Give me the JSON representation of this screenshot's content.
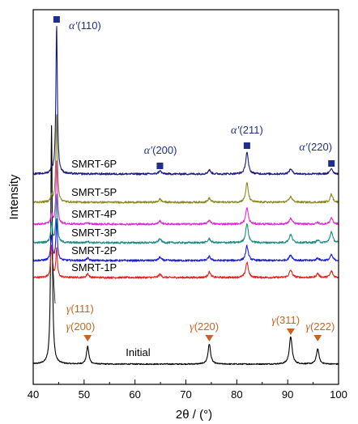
{
  "chart_data": {
    "type": "line",
    "xlabel": "2θ / (°)",
    "ylabel": "Intensity",
    "xlim": [
      40,
      100
    ],
    "xticks": [
      40,
      50,
      60,
      70,
      80,
      90,
      100
    ],
    "y_ticks_shown": false,
    "grid": false,
    "series": [
      {
        "name": "Initial",
        "color": "#000000",
        "peaks": [
          {
            "x": 43.6,
            "height": 295,
            "width": 0.35
          },
          {
            "x": 50.7,
            "height": 22,
            "width": 0.55
          },
          {
            "x": 74.6,
            "height": 25,
            "width": 0.6
          },
          {
            "x": 90.6,
            "height": 34,
            "width": 0.65
          },
          {
            "x": 95.9,
            "height": 19,
            "width": 0.6
          }
        ]
      },
      {
        "name": "SMRT-1P",
        "color": "#e8221b",
        "peaks": [
          {
            "x": 43.6,
            "height": 40,
            "width": 0.4
          },
          {
            "x": 44.6,
            "height": 35,
            "width": 0.35
          },
          {
            "x": 50.7,
            "height": 5,
            "width": 0.5
          },
          {
            "x": 64.9,
            "height": 4,
            "width": 0.6
          },
          {
            "x": 74.6,
            "height": 7,
            "width": 0.6
          },
          {
            "x": 82.0,
            "height": 19,
            "width": 0.6
          },
          {
            "x": 90.6,
            "height": 9,
            "width": 0.7
          },
          {
            "x": 95.9,
            "height": 5,
            "width": 0.6
          },
          {
            "x": 98.6,
            "height": 8,
            "width": 0.6
          }
        ]
      },
      {
        "name": "SMRT-2P",
        "color": "#1c1cde",
        "peaks": [
          {
            "x": 43.6,
            "height": 30,
            "width": 0.4
          },
          {
            "x": 44.6,
            "height": 50,
            "width": 0.35
          },
          {
            "x": 50.7,
            "height": 3,
            "width": 0.5
          },
          {
            "x": 64.9,
            "height": 4,
            "width": 0.6
          },
          {
            "x": 74.6,
            "height": 5,
            "width": 0.6
          },
          {
            "x": 82.0,
            "height": 18,
            "width": 0.6
          },
          {
            "x": 90.6,
            "height": 7,
            "width": 0.7
          },
          {
            "x": 95.9,
            "height": 3,
            "width": 0.6
          },
          {
            "x": 98.6,
            "height": 7,
            "width": 0.6
          }
        ]
      },
      {
        "name": "SMRT-3P",
        "color": "#1a8c86",
        "peaks": [
          {
            "x": 43.6,
            "height": 25,
            "width": 0.4
          },
          {
            "x": 44.6,
            "height": 60,
            "width": 0.35
          },
          {
            "x": 50.7,
            "height": 2,
            "width": 0.5
          },
          {
            "x": 64.9,
            "height": 5,
            "width": 0.6
          },
          {
            "x": 74.6,
            "height": 5,
            "width": 0.6
          },
          {
            "x": 82.0,
            "height": 24,
            "width": 0.6
          },
          {
            "x": 90.6,
            "height": 10,
            "width": 0.7
          },
          {
            "x": 95.9,
            "height": 3,
            "width": 0.6
          },
          {
            "x": 98.6,
            "height": 14,
            "width": 0.6
          }
        ]
      },
      {
        "name": "SMRT-4P",
        "color": "#e02ad6",
        "peaks": [
          {
            "x": 43.6,
            "height": 12,
            "width": 0.4
          },
          {
            "x": 44.6,
            "height": 80,
            "width": 0.35
          },
          {
            "x": 50.7,
            "height": 2,
            "width": 0.5
          },
          {
            "x": 64.9,
            "height": 4,
            "width": 0.6
          },
          {
            "x": 74.6,
            "height": 5,
            "width": 0.6
          },
          {
            "x": 82.0,
            "height": 20,
            "width": 0.6
          },
          {
            "x": 90.6,
            "height": 7,
            "width": 0.7
          },
          {
            "x": 95.9,
            "height": 2,
            "width": 0.6
          },
          {
            "x": 98.6,
            "height": 8,
            "width": 0.6
          }
        ]
      },
      {
        "name": "SMRT-5P",
        "color": "#8a8a20",
        "peaks": [
          {
            "x": 43.6,
            "height": 8,
            "width": 0.4
          },
          {
            "x": 44.6,
            "height": 110,
            "width": 0.35
          },
          {
            "x": 64.9,
            "height": 4,
            "width": 0.6
          },
          {
            "x": 74.6,
            "height": 5,
            "width": 0.6
          },
          {
            "x": 82.0,
            "height": 24,
            "width": 0.6
          },
          {
            "x": 90.6,
            "height": 7,
            "width": 0.7
          },
          {
            "x": 98.6,
            "height": 10,
            "width": 0.6
          }
        ]
      },
      {
        "name": "SMRT-6P",
        "color": "#1a1a82",
        "peaks": [
          {
            "x": 43.6,
            "height": 5,
            "width": 0.4
          },
          {
            "x": 44.6,
            "height": 185,
            "width": 0.35
          },
          {
            "x": 64.9,
            "height": 4,
            "width": 0.6
          },
          {
            "x": 74.6,
            "height": 5,
            "width": 0.6
          },
          {
            "x": 82.0,
            "height": 27,
            "width": 0.6
          },
          {
            "x": 90.6,
            "height": 6,
            "width": 0.7
          },
          {
            "x": 98.6,
            "height": 7,
            "width": 0.6
          }
        ]
      }
    ],
    "annotations": {
      "alpha_symbol": "α′",
      "alpha_peaks": [
        {
          "x": 44.6,
          "hkl": "(110)"
        },
        {
          "x": 64.9,
          "hkl": "(200)"
        },
        {
          "x": 82.0,
          "hkl": "(211)"
        },
        {
          "x": 98.6,
          "hkl": "(220)"
        }
      ],
      "gamma_symbol": "γ",
      "gamma_peaks": [
        {
          "x": 43.6,
          "hkl": "(111)"
        },
        {
          "x": 50.7,
          "hkl": "(200)"
        },
        {
          "x": 74.6,
          "hkl": "(220)"
        },
        {
          "x": 90.6,
          "hkl": "(311)"
        },
        {
          "x": 95.9,
          "hkl": "(222)"
        }
      ],
      "alpha_color": "#1f2f8a",
      "gamma_color": "#c8641e"
    }
  }
}
